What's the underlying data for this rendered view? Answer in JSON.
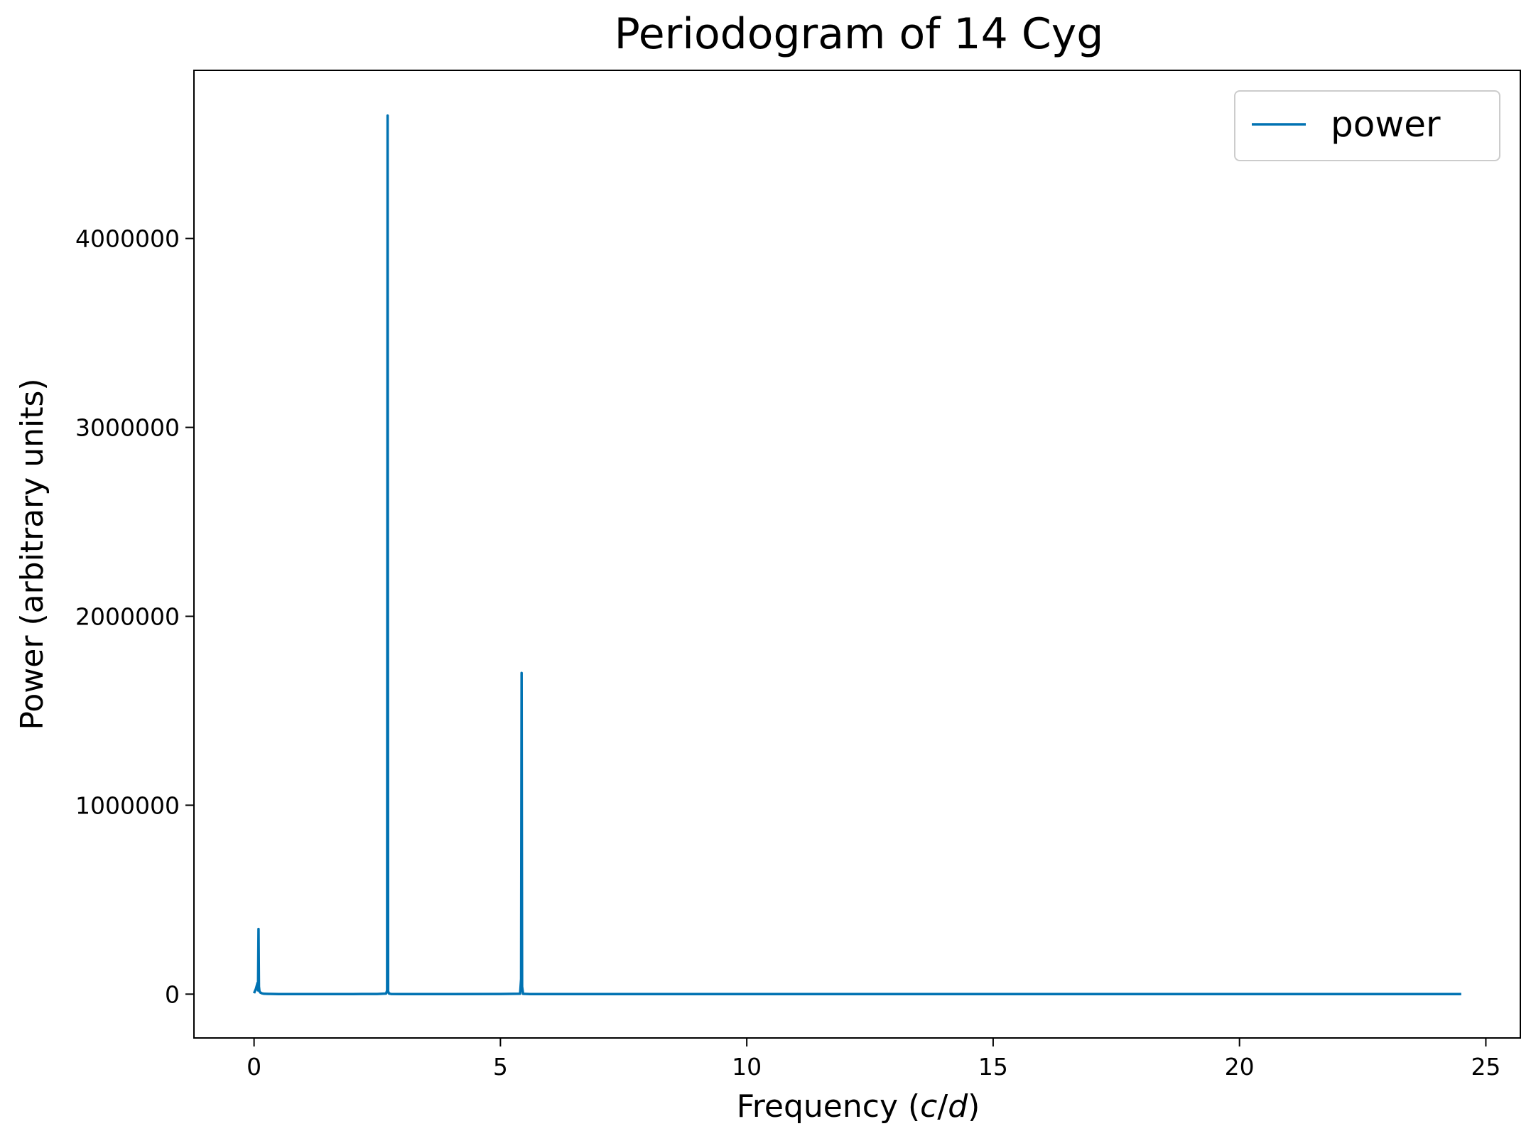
{
  "chart_data": {
    "type": "line",
    "title": "Periodogram of 14 Cyg",
    "xlabel_prefix": "Frequency (",
    "xlabel_var_c": "c",
    "xlabel_slash": "/",
    "xlabel_var_d": "d",
    "xlabel_suffix": ")",
    "ylabel": "Power (arbitrary units)",
    "xlim": [
      -1.22,
      25.7
    ],
    "ylim": [
      -232000,
      4890000
    ],
    "xticks": [
      0,
      5,
      10,
      15,
      20,
      25
    ],
    "xtick_labels": [
      "0",
      "5",
      "10",
      "15",
      "20",
      "25"
    ],
    "yticks": [
      0,
      1000000,
      2000000,
      3000000,
      4000000
    ],
    "ytick_labels": [
      "0",
      "1000000",
      "2000000",
      "3000000",
      "4000000"
    ],
    "grid": false,
    "legend_position": "top-right",
    "series": [
      {
        "name": "power",
        "color": "#0072b2",
        "x": [
          0.0,
          0.04,
          0.07,
          0.08,
          0.09,
          0.1,
          0.11,
          0.13,
          0.16,
          0.2,
          0.3,
          0.5,
          1.0,
          1.5,
          2.0,
          2.5,
          2.68,
          2.7,
          2.71,
          2.72,
          2.74,
          2.78,
          3.0,
          4.0,
          5.0,
          5.4,
          5.42,
          5.43,
          5.44,
          5.46,
          5.6,
          7.0,
          10.0,
          15.0,
          20.0,
          24.5
        ],
        "y": [
          5000,
          30000,
          60000,
          20000,
          345000,
          40000,
          15000,
          8000,
          4000,
          2000,
          1000,
          500,
          300,
          300,
          400,
          800,
          3000,
          20000,
          4650000,
          15000,
          3000,
          900,
          500,
          400,
          600,
          2000,
          80000,
          1700000,
          40000,
          1500,
          500,
          300,
          200,
          200,
          200,
          200
        ]
      }
    ]
  }
}
